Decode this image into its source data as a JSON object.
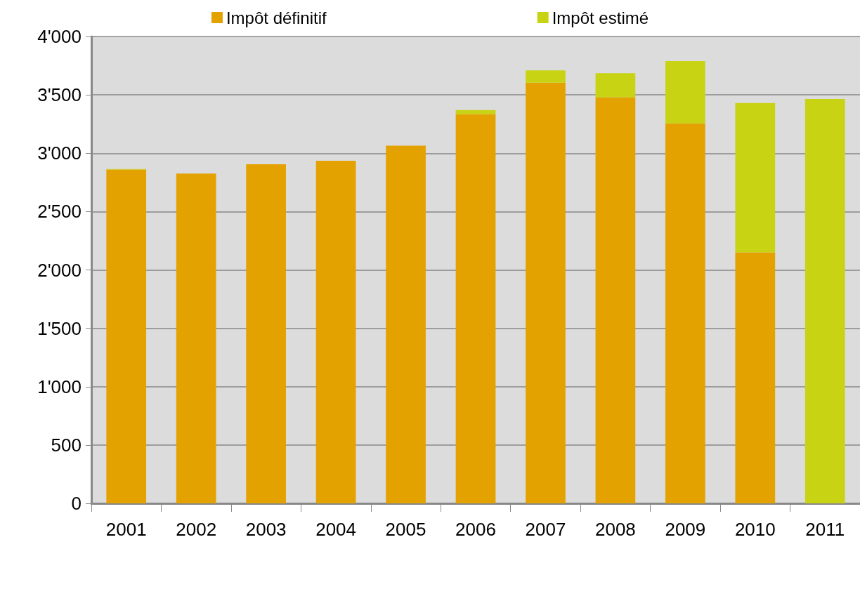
{
  "chart_data": {
    "type": "bar",
    "stacked": true,
    "categories": [
      "2001",
      "2002",
      "2003",
      "2004",
      "2005",
      "2006",
      "2007",
      "2008",
      "2009",
      "2010",
      "2011"
    ],
    "series": [
      {
        "name": "Impôt définitif",
        "color": "#e3a200",
        "values": [
          2860,
          2825,
          2905,
          2935,
          3065,
          3335,
          3605,
          3480,
          3255,
          2150,
          0
        ]
      },
      {
        "name": "Impôt estimé",
        "color": "#c8d314",
        "values": [
          5,
          0,
          0,
          0,
          0,
          35,
          105,
          205,
          535,
          1280,
          3465
        ]
      }
    ],
    "ylim": [
      0,
      4000
    ],
    "yticks": [
      {
        "value": 0,
        "label": "0"
      },
      {
        "value": 500,
        "label": "500"
      },
      {
        "value": 1000,
        "label": "1'000"
      },
      {
        "value": 1500,
        "label": "1'500"
      },
      {
        "value": 2000,
        "label": "2'000"
      },
      {
        "value": 2500,
        "label": "2'500"
      },
      {
        "value": 3000,
        "label": "3'000"
      },
      {
        "value": 3500,
        "label": "3'500"
      },
      {
        "value": 4000,
        "label": "4'000"
      }
    ],
    "grid": "y",
    "legend": "top"
  }
}
